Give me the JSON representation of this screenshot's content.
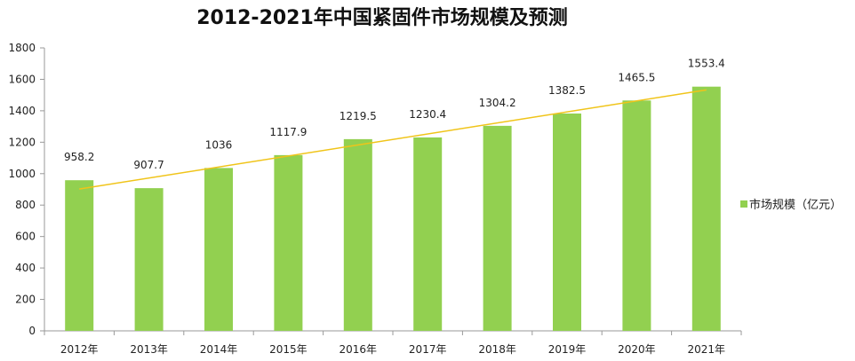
{
  "chart_data": {
    "type": "bar",
    "title": "2012-2021年中国紧固件市场规模及预测",
    "categories": [
      "2012年",
      "2013年",
      "2014年",
      "2015年",
      "2016年",
      "2017年",
      "2018年",
      "2019年",
      "2020年",
      "2021年"
    ],
    "series": [
      {
        "name": "市场规模（亿元）",
        "values": [
          958.2,
          907.7,
          1036,
          1117.9,
          1219.5,
          1230.4,
          1304.2,
          1382.5,
          1465.5,
          1553.4
        ],
        "color": "#92d050"
      }
    ],
    "data_labels": [
      "958.2",
      "907.7",
      "1036",
      "1117.9",
      "1219.5",
      "1230.4",
      "1304.2",
      "1382.5",
      "1465.5",
      "1553.4"
    ],
    "trendline": {
      "type": "linear",
      "color": "#f0c419"
    },
    "ylim": [
      0,
      1800
    ],
    "yticks": [
      0,
      200,
      400,
      600,
      800,
      1000,
      1200,
      1400,
      1600,
      1800
    ],
    "xlabel": "",
    "ylabel": "",
    "grid": false,
    "legend": "right"
  }
}
